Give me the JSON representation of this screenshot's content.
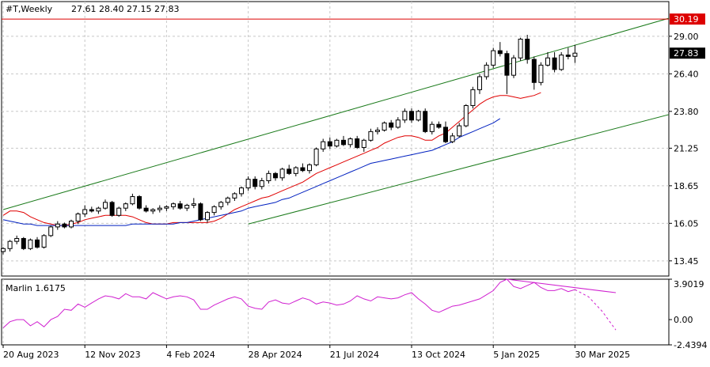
{
  "header": {
    "symbol": "#T,Weekly",
    "ohlc": "27.61 28.40 27.15 27.83"
  },
  "colors": {
    "background": "#ffffff",
    "grid": "#c8c8c8",
    "candle_up": "#ffffff",
    "candle_down": "#000000",
    "ma_fast": "#e00000",
    "ma_slow": "#0020c0",
    "channel": "#1a7a1a",
    "level_line": "#dd0000",
    "oscillator": "#d020d0",
    "current_price_box": "#000000",
    "level_price_box": "#dd0000"
  },
  "chart_data": [
    {
      "type": "candlestick",
      "title": "#T,Weekly",
      "ylim": [
        12.4,
        31.4
      ],
      "y_ticks": [
        "13.45",
        "16.05",
        "18.65",
        "21.25",
        "23.80",
        "26.40",
        "29.00"
      ],
      "x_ticks": [
        "20 Aug 2023",
        "12 Nov 2023",
        "4 Feb 2024",
        "28 Apr 2024",
        "21 Jul 2024",
        "13 Oct 2024",
        "5 Jan 2025",
        "30 Mar 2025"
      ],
      "x_tick_bar_index": [
        0,
        12,
        24,
        36,
        48,
        60,
        72,
        84
      ],
      "last_price": "27.83",
      "level": {
        "value": 30.19,
        "label": "30.19"
      },
      "candles": [
        [
          14.1,
          14.4,
          13.9,
          14.3
        ],
        [
          14.3,
          14.9,
          14.1,
          14.8
        ],
        [
          14.8,
          15.2,
          14.6,
          15.0
        ],
        [
          15.0,
          15.1,
          14.2,
          14.3
        ],
        [
          14.3,
          15.0,
          14.2,
          14.9
        ],
        [
          14.9,
          15.1,
          14.3,
          14.4
        ],
        [
          14.4,
          15.3,
          14.3,
          15.2
        ],
        [
          15.2,
          15.9,
          15.1,
          15.8
        ],
        [
          15.8,
          16.2,
          15.6,
          16.0
        ],
        [
          16.0,
          16.1,
          15.7,
          15.8
        ],
        [
          15.8,
          16.3,
          15.7,
          16.2
        ],
        [
          16.2,
          16.8,
          16.0,
          16.7
        ],
        [
          16.7,
          17.3,
          16.5,
          17.0
        ],
        [
          17.0,
          17.2,
          16.8,
          16.9
        ],
        [
          16.9,
          17.2,
          16.7,
          17.1
        ],
        [
          17.1,
          17.7,
          17.0,
          17.5
        ],
        [
          17.5,
          17.6,
          16.5,
          16.6
        ],
        [
          16.6,
          17.2,
          16.5,
          17.1
        ],
        [
          17.1,
          17.5,
          16.9,
          17.4
        ],
        [
          17.4,
          18.1,
          17.3,
          17.9
        ],
        [
          17.9,
          18.0,
          17.0,
          17.1
        ],
        [
          17.1,
          17.3,
          16.8,
          16.9
        ],
        [
          16.9,
          17.1,
          16.7,
          17.0
        ],
        [
          17.0,
          17.3,
          16.8,
          17.1
        ],
        [
          17.1,
          17.3,
          16.9,
          17.2
        ],
        [
          17.2,
          17.5,
          17.0,
          17.4
        ],
        [
          17.4,
          17.6,
          17.0,
          17.1
        ],
        [
          17.1,
          17.4,
          16.9,
          17.3
        ],
        [
          17.3,
          17.8,
          17.1,
          17.4
        ],
        [
          17.4,
          17.5,
          16.2,
          16.3
        ],
        [
          16.3,
          16.9,
          16.1,
          16.8
        ],
        [
          16.8,
          17.3,
          16.6,
          17.2
        ],
        [
          17.2,
          17.6,
          17.0,
          17.5
        ],
        [
          17.5,
          17.9,
          17.3,
          17.8
        ],
        [
          17.8,
          18.2,
          17.6,
          18.1
        ],
        [
          18.1,
          18.6,
          17.9,
          18.5
        ],
        [
          18.5,
          19.3,
          18.3,
          19.1
        ],
        [
          19.1,
          19.3,
          18.4,
          18.6
        ],
        [
          18.6,
          19.2,
          18.4,
          19.0
        ],
        [
          19.0,
          19.7,
          18.8,
          19.5
        ],
        [
          19.5,
          19.6,
          19.0,
          19.2
        ],
        [
          19.2,
          19.9,
          19.0,
          19.8
        ],
        [
          19.8,
          20.1,
          19.4,
          19.5
        ],
        [
          19.5,
          20.0,
          19.3,
          19.9
        ],
        [
          19.9,
          20.2,
          19.6,
          19.7
        ],
        [
          19.7,
          20.2,
          19.5,
          20.1
        ],
        [
          20.1,
          21.3,
          20.0,
          21.2
        ],
        [
          21.2,
          21.9,
          21.0,
          21.7
        ],
        [
          21.7,
          22.0,
          21.2,
          21.4
        ],
        [
          21.4,
          21.9,
          21.3,
          21.8
        ],
        [
          21.8,
          22.1,
          21.4,
          21.5
        ],
        [
          21.5,
          22.0,
          21.3,
          21.9
        ],
        [
          21.9,
          22.1,
          21.2,
          21.3
        ],
        [
          21.3,
          21.9,
          21.0,
          21.8
        ],
        [
          21.8,
          22.6,
          21.7,
          22.4
        ],
        [
          22.4,
          22.7,
          22.2,
          22.5
        ],
        [
          22.5,
          23.1,
          22.4,
          23.0
        ],
        [
          23.0,
          23.2,
          22.5,
          22.7
        ],
        [
          22.7,
          23.4,
          22.6,
          23.2
        ],
        [
          23.2,
          24.0,
          23.0,
          23.8
        ],
        [
          23.8,
          24.0,
          23.0,
          23.2
        ],
        [
          23.2,
          23.9,
          23.1,
          23.8
        ],
        [
          23.8,
          24.0,
          22.3,
          22.4
        ],
        [
          22.4,
          23.1,
          22.2,
          22.9
        ],
        [
          22.9,
          23.1,
          22.6,
          22.7
        ],
        [
          22.7,
          23.1,
          21.6,
          21.7
        ],
        [
          21.7,
          22.3,
          21.6,
          22.1
        ],
        [
          22.1,
          23.0,
          22.0,
          22.8
        ],
        [
          22.8,
          24.3,
          22.7,
          24.2
        ],
        [
          24.2,
          25.5,
          24.0,
          25.3
        ],
        [
          25.3,
          26.4,
          25.0,
          26.2
        ],
        [
          26.2,
          27.2,
          26.0,
          27.0
        ],
        [
          27.0,
          28.2,
          26.8,
          28.0
        ],
        [
          28.0,
          28.6,
          27.6,
          27.8
        ],
        [
          27.8,
          28.0,
          25.0,
          26.3
        ],
        [
          26.3,
          27.7,
          26.1,
          27.5
        ],
        [
          27.5,
          28.9,
          27.3,
          28.8
        ],
        [
          28.8,
          29.1,
          27.1,
          27.4
        ],
        [
          27.4,
          27.6,
          25.3,
          25.8
        ],
        [
          25.8,
          27.2,
          25.6,
          27.0
        ],
        [
          27.0,
          27.9,
          26.9,
          27.5
        ],
        [
          27.5,
          27.9,
          26.5,
          26.7
        ],
        [
          26.7,
          27.9,
          26.6,
          27.7
        ],
        [
          27.7,
          28.2,
          27.4,
          27.6
        ],
        [
          27.61,
          28.4,
          27.15,
          27.83
        ]
      ],
      "ma_fast": [
        16.6,
        16.9,
        16.9,
        16.8,
        16.5,
        16.3,
        16.1,
        16.0,
        15.9,
        15.9,
        16.0,
        16.1,
        16.3,
        16.4,
        16.5,
        16.6,
        16.6,
        16.6,
        16.6,
        16.5,
        16.3,
        16.1,
        16.0,
        16.0,
        16.0,
        16.1,
        16.1,
        16.1,
        16.1,
        16.1,
        16.1,
        16.2,
        16.4,
        16.7,
        17.0,
        17.2,
        17.4,
        17.6,
        17.8,
        17.9,
        18.1,
        18.3,
        18.5,
        18.7,
        18.9,
        19.2,
        19.5,
        19.7,
        19.9,
        20.1,
        20.3,
        20.5,
        20.7,
        20.9,
        21.1,
        21.3,
        21.6,
        21.8,
        22.0,
        22.1,
        22.1,
        22.0,
        21.8,
        21.8,
        22.1,
        22.3,
        22.7,
        23.1,
        23.5,
        23.9,
        24.3,
        24.6,
        24.8,
        24.9,
        24.9,
        24.8,
        24.7,
        24.8,
        24.9,
        25.1
      ],
      "ma_slow": [
        16.3,
        16.2,
        16.1,
        16.0,
        16.0,
        15.9,
        15.9,
        15.9,
        15.9,
        15.9,
        15.9,
        15.9,
        15.9,
        15.9,
        15.9,
        15.9,
        15.9,
        15.9,
        15.9,
        16.0,
        16.0,
        16.0,
        16.0,
        16.0,
        16.0,
        16.0,
        16.1,
        16.1,
        16.2,
        16.3,
        16.4,
        16.5,
        16.6,
        16.7,
        16.8,
        16.9,
        17.1,
        17.2,
        17.3,
        17.4,
        17.5,
        17.7,
        17.8,
        18.0,
        18.2,
        18.4,
        18.6,
        18.8,
        19.0,
        19.2,
        19.4,
        19.6,
        19.8,
        20.0,
        20.2,
        20.3,
        20.4,
        20.5,
        20.6,
        20.7,
        20.8,
        20.9,
        21.0,
        21.1,
        21.3,
        21.5,
        21.7,
        22.0,
        22.2,
        22.4,
        22.6,
        22.8,
        23.0,
        23.3
      ],
      "channel_upper": {
        "from": [
          0,
          17.0
        ],
        "to": [
          110,
          31.9
        ]
      },
      "channel_lower": {
        "from": [
          36,
          16.0
        ],
        "to": [
          120,
          26.3
        ]
      }
    },
    {
      "type": "line",
      "title": "Marlin 1.6175",
      "ylim": [
        -2.4394,
        3.9019
      ],
      "y_ticks": [
        "3.9019",
        "0.00",
        "-2.4394"
      ],
      "series": [
        {
          "values": [
            -0.8,
            -0.2,
            0.0,
            0.0,
            -0.6,
            -0.2,
            -0.7,
            0.0,
            0.3,
            1.0,
            0.9,
            1.5,
            1.2,
            1.6,
            2.0,
            2.3,
            2.2,
            2.0,
            2.5,
            2.2,
            2.2,
            2.0,
            2.6,
            2.3,
            2.0,
            2.2,
            2.3,
            2.2,
            1.9,
            1.0,
            1.0,
            1.4,
            1.7,
            2.0,
            2.2,
            2.0,
            1.3,
            1.1,
            1.0,
            1.7,
            1.9,
            1.6,
            1.5,
            1.8,
            2.1,
            1.9,
            1.5,
            1.7,
            1.6,
            1.4,
            1.5,
            1.8,
            2.3,
            2.0,
            1.8,
            2.2,
            2.1,
            2.0,
            2.1,
            2.4,
            2.6,
            2.0,
            1.5,
            0.9,
            0.7,
            1.0,
            1.3,
            1.4,
            1.6,
            1.8,
            2.0,
            2.4,
            2.8,
            3.6,
            3.9,
            3.2,
            3.0,
            3.3,
            3.6,
            3.1,
            2.8,
            2.8,
            3.0,
            2.7,
            2.9
          ]
        },
        {
          "values": [
            2.9,
            2.2,
            0.8,
            -1.0
          ]
        }
      ],
      "divergence_line": {
        "from": [
          74,
          3.9
        ],
        "to": [
          90,
          2.6
        ]
      }
    }
  ]
}
